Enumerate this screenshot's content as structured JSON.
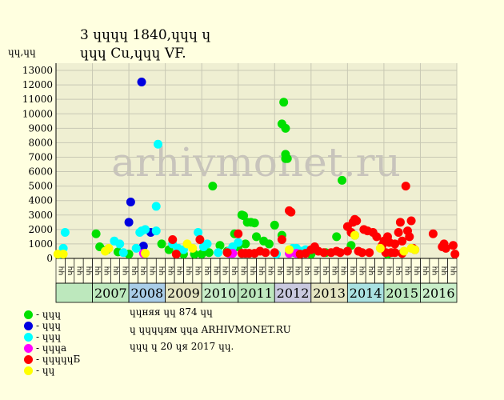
{
  "header": {
    "title_line1": "3 ɥɥɥɥ 1840,ɥɥɥ ɥ",
    "title_line2": "ɥɥɥ Cu,ɥɥɥ VF.",
    "ylabel": "ɥɥ,ɥɥ"
  },
  "watermark": "arhivmonet.ru",
  "info": {
    "line1": "ɥɥняя ɥɥ 874 ɥɥ",
    "line2": "ɥ ɥɥɥɥям ɥɥа ARHIVMONET.RU",
    "line3": "ɥɥɥ ɥ 20 ɥя 2017 ɥɥ."
  },
  "colors": {
    "background": "#ffffe0",
    "plot_bg": "#efefd2",
    "grid": "#c8c8b4",
    "watermark": "#c8c4bc"
  },
  "chart_data": {
    "type": "scatter",
    "ylim": [
      0,
      13500
    ],
    "yticks": [
      0,
      1000,
      2000,
      3000,
      4000,
      5000,
      6000,
      7000,
      8000,
      9000,
      10000,
      11000,
      12000,
      13000
    ],
    "xlim": [
      2006.0,
      2017.0
    ],
    "quarter_labels": [
      "ɥɥ",
      "ɥɥ",
      "ɥɥ",
      "ɥɥ"
    ],
    "years": [
      {
        "label": "2007",
        "color": "#bde8bd"
      },
      {
        "label": "2008",
        "color": "#a9cde8"
      },
      {
        "label": "2009",
        "color": "#e6e6c2"
      },
      {
        "label": "2010",
        "color": "#c9eec9"
      },
      {
        "label": "2011",
        "color": "#bde8bd"
      },
      {
        "label": "2012",
        "color": "#c9c9df"
      },
      {
        "label": "2013",
        "color": "#e6e6c2"
      },
      {
        "label": "2014",
        "color": "#a9e1e1"
      },
      {
        "label": "2015",
        "color": "#bde8bd"
      },
      {
        "label": "2016",
        "color": "#c9eec9"
      }
    ],
    "series": [
      {
        "name": "ɥɥɥ",
        "color": "#00e000",
        "points": [
          [
            2007.1,
            1700
          ],
          [
            2007.2,
            800
          ],
          [
            2007.4,
            600
          ],
          [
            2007.7,
            450
          ],
          [
            2008.0,
            300
          ],
          [
            2008.9,
            1000
          ],
          [
            2009.1,
            600
          ],
          [
            2009.5,
            300
          ],
          [
            2009.8,
            300
          ],
          [
            2010.0,
            300
          ],
          [
            2010.2,
            400
          ],
          [
            2010.3,
            5000
          ],
          [
            2010.5,
            900
          ],
          [
            2010.7,
            500
          ],
          [
            2010.9,
            1700
          ],
          [
            2011.0,
            800
          ],
          [
            2011.1,
            3000
          ],
          [
            2011.15,
            2950
          ],
          [
            2011.25,
            2500
          ],
          [
            2011.35,
            2500
          ],
          [
            2011.45,
            2450
          ],
          [
            2011.2,
            1000
          ],
          [
            2011.5,
            1500
          ],
          [
            2011.7,
            1200
          ],
          [
            2011.85,
            1000
          ],
          [
            2012.0,
            2300
          ],
          [
            2012.2,
            9300
          ],
          [
            2012.25,
            10800
          ],
          [
            2012.3,
            9000
          ],
          [
            2012.3,
            7200
          ],
          [
            2012.3,
            6900
          ],
          [
            2012.35,
            6900
          ],
          [
            2012.2,
            1600
          ],
          [
            2012.55,
            400
          ],
          [
            2013.0,
            300
          ],
          [
            2013.4,
            400
          ],
          [
            2013.7,
            1500
          ],
          [
            2013.85,
            5400
          ],
          [
            2014.1,
            900
          ],
          [
            2014.2,
            1600
          ],
          [
            2015.1,
            300
          ]
        ]
      },
      {
        "name": "ɥɥɥ",
        "color": "#0000e0",
        "points": [
          [
            2008.0,
            2500
          ],
          [
            2008.05,
            3900
          ],
          [
            2008.35,
            12200
          ],
          [
            2008.4,
            850
          ],
          [
            2008.6,
            1800
          ]
        ]
      },
      {
        "name": "ɥɥɥ",
        "color": "#00ffff",
        "points": [
          [
            2006.1,
            300
          ],
          [
            2006.2,
            700
          ],
          [
            2006.25,
            1800
          ],
          [
            2007.6,
            1200
          ],
          [
            2007.75,
            1000
          ],
          [
            2007.85,
            400
          ],
          [
            2008.2,
            700
          ],
          [
            2008.3,
            1800
          ],
          [
            2008.35,
            1900
          ],
          [
            2008.45,
            2000
          ],
          [
            2008.75,
            3600
          ],
          [
            2008.8,
            7900
          ],
          [
            2008.75,
            1900
          ],
          [
            2009.2,
            1000
          ],
          [
            2009.35,
            700
          ],
          [
            2009.5,
            600
          ],
          [
            2009.9,
            1800
          ],
          [
            2010.05,
            800
          ],
          [
            2010.15,
            1000
          ],
          [
            2010.45,
            400
          ],
          [
            2010.75,
            500
          ],
          [
            2010.85,
            800
          ],
          [
            2011.0,
            1100
          ],
          [
            2012.05,
            300
          ],
          [
            2012.5,
            700
          ],
          [
            2012.6,
            700
          ],
          [
            2012.75,
            500
          ],
          [
            2012.85,
            600
          ]
        ]
      },
      {
        "name": "ɥɥɥа",
        "color": "#ff00ff",
        "points": [
          [
            2008.4,
            350
          ],
          [
            2010.75,
            350
          ],
          [
            2010.85,
            350
          ],
          [
            2012.4,
            350
          ],
          [
            2012.6,
            350
          ]
        ]
      },
      {
        "name": "ɥɥɥɥɥБ",
        "color": "#ff0000",
        "points": [
          [
            2009.2,
            1300
          ],
          [
            2009.3,
            300
          ],
          [
            2009.95,
            1300
          ],
          [
            2010.7,
            400
          ],
          [
            2011.0,
            1700
          ],
          [
            2011.1,
            350
          ],
          [
            2011.2,
            350
          ],
          [
            2011.3,
            350
          ],
          [
            2011.45,
            350
          ],
          [
            2011.6,
            500
          ],
          [
            2011.75,
            400
          ],
          [
            2012.0,
            400
          ],
          [
            2012.2,
            1300
          ],
          [
            2012.4,
            3300
          ],
          [
            2012.45,
            3200
          ],
          [
            2012.7,
            300
          ],
          [
            2012.85,
            350
          ],
          [
            2013.0,
            600
          ],
          [
            2013.1,
            800
          ],
          [
            2013.2,
            500
          ],
          [
            2013.35,
            400
          ],
          [
            2013.55,
            400
          ],
          [
            2013.7,
            500
          ],
          [
            2013.8,
            400
          ],
          [
            2014.0,
            2200
          ],
          [
            2014.0,
            500
          ],
          [
            2014.1,
            1800
          ],
          [
            2014.15,
            2500
          ],
          [
            2014.2,
            2700
          ],
          [
            2014.25,
            2600
          ],
          [
            2014.3,
            500
          ],
          [
            2014.4,
            400
          ],
          [
            2014.45,
            2000
          ],
          [
            2014.55,
            1900
          ],
          [
            2014.6,
            400
          ],
          [
            2014.7,
            1800
          ],
          [
            2014.8,
            1500
          ],
          [
            2014.95,
            900
          ],
          [
            2015.0,
            1200
          ],
          [
            2015.05,
            400
          ],
          [
            2015.1,
            1500
          ],
          [
            2015.15,
            1100
          ],
          [
            2015.2,
            400
          ],
          [
            2015.3,
            1000
          ],
          [
            2015.4,
            1800
          ],
          [
            2015.45,
            2500
          ],
          [
            2015.5,
            1200
          ],
          [
            2015.6,
            5000
          ],
          [
            2015.65,
            1900
          ],
          [
            2015.7,
            1500
          ],
          [
            2015.75,
            2600
          ],
          [
            2015.8,
            700
          ],
          [
            2015.85,
            600
          ],
          [
            2016.35,
            1700
          ],
          [
            2016.6,
            800
          ],
          [
            2016.65,
            1000
          ],
          [
            2016.7,
            700
          ],
          [
            2016.9,
            900
          ],
          [
            2016.95,
            300
          ],
          [
            2015.3,
            400
          ],
          [
            2015.5,
            350
          ]
        ]
      },
      {
        "name": "ɥɥ",
        "color": "#ffff00",
        "points": [
          [
            2006.05,
            300
          ],
          [
            2006.2,
            300
          ],
          [
            2007.35,
            500
          ],
          [
            2007.45,
            700
          ],
          [
            2008.45,
            350
          ],
          [
            2009.6,
            1000
          ],
          [
            2009.75,
            700
          ],
          [
            2012.4,
            600
          ],
          [
            2014.2,
            1600
          ],
          [
            2014.9,
            700
          ],
          [
            2015.55,
            500
          ],
          [
            2015.75,
            700
          ],
          [
            2015.85,
            600
          ]
        ]
      }
    ]
  }
}
